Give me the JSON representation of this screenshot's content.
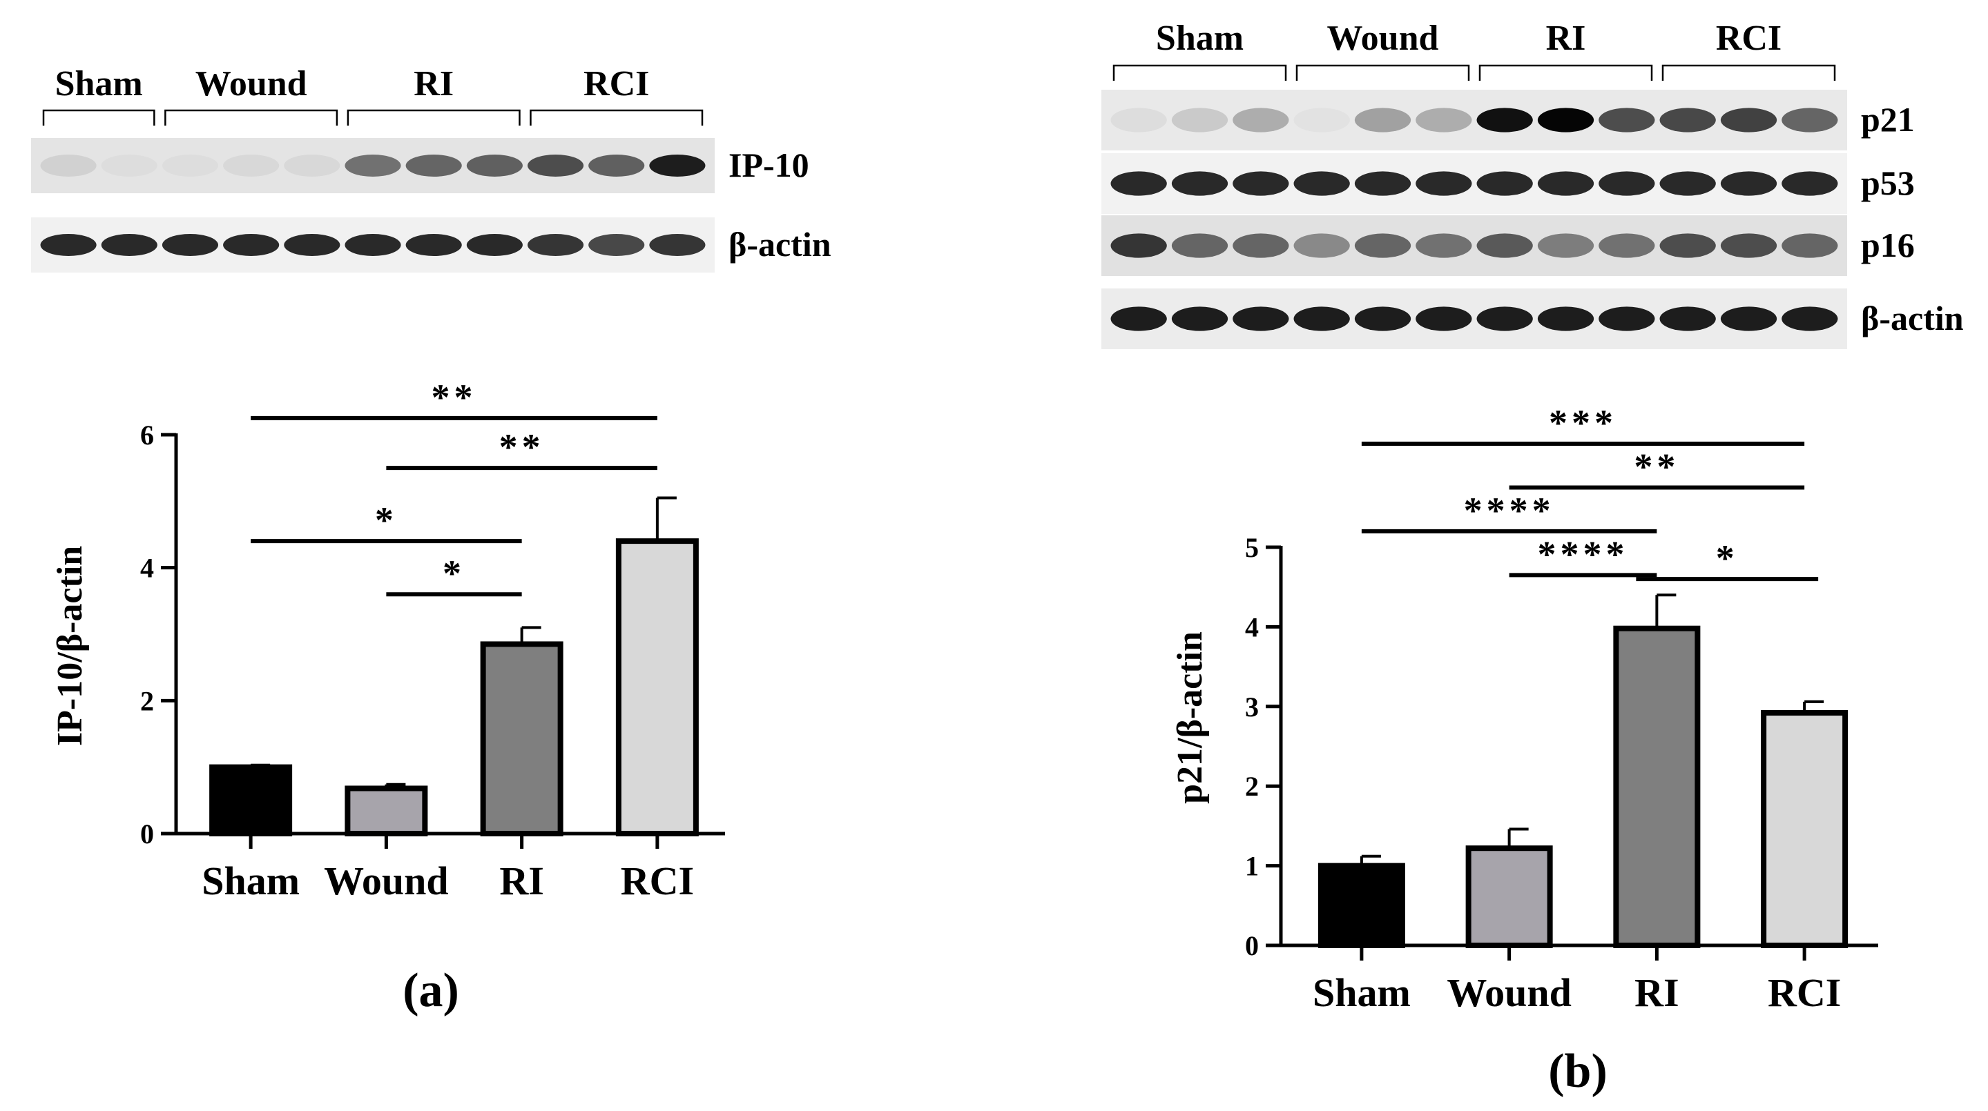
{
  "panels": [
    {
      "panel_label": "(a)",
      "blot": {
        "group_labels": [
          "Sham",
          "Wound",
          "RI",
          "RCI"
        ],
        "lanes_per_group": [
          2,
          3,
          3,
          3
        ],
        "rows": [
          {
            "label": "IP-10",
            "lane_intensity": [
              0.15,
              0.1,
              0.1,
              0.12,
              0.12,
              0.55,
              0.6,
              0.62,
              0.7,
              0.62,
              0.9
            ],
            "background": "#e4e4e4"
          },
          {
            "label": "β-actin",
            "lane_intensity": [
              0.85,
              0.85,
              0.85,
              0.85,
              0.85,
              0.85,
              0.85,
              0.85,
              0.8,
              0.72,
              0.8
            ],
            "background": "#f1f1f1"
          }
        ]
      },
      "chart_data": {
        "type": "bar",
        "categories": [
          "Sham",
          "Wound",
          "RI",
          "RCI"
        ],
        "values": [
          1.0,
          0.68,
          2.85,
          4.4
        ],
        "errors": [
          0.03,
          0.06,
          0.25,
          0.65
        ],
        "colors": [
          "#000000",
          "#a7a4ab",
          "#7f7f7f",
          "#d8d8d8"
        ],
        "ylabel": "IP-10/β-actin",
        "ylim": [
          0,
          6
        ],
        "yticks": [
          0,
          2,
          4,
          6
        ],
        "grid": false,
        "significance": [
          {
            "from": 0,
            "to": 3,
            "label": "**",
            "y": 6.25
          },
          {
            "from": 1,
            "to": 3,
            "label": "**",
            "y": 5.5
          },
          {
            "from": 0,
            "to": 2,
            "label": "*",
            "y": 4.4
          },
          {
            "from": 1,
            "to": 2,
            "label": "*",
            "y": 3.6
          }
        ]
      }
    },
    {
      "panel_label": "(b)",
      "blot": {
        "group_labels": [
          "Sham",
          "Wound",
          "RI",
          "RCI"
        ],
        "lanes_per_group": [
          3,
          3,
          3,
          3
        ],
        "rows": [
          {
            "label": "p21",
            "lane_intensity": [
              0.1,
              0.18,
              0.3,
              0.08,
              0.35,
              0.3,
              0.95,
              1.0,
              0.7,
              0.72,
              0.75,
              0.6
            ],
            "background": "#e9e9e9"
          },
          {
            "label": "p53",
            "lane_intensity": [
              0.85,
              0.85,
              0.85,
              0.85,
              0.85,
              0.85,
              0.85,
              0.85,
              0.85,
              0.85,
              0.85,
              0.85
            ],
            "background": "#f2f2f2"
          },
          {
            "label": "p16",
            "lane_intensity": [
              0.8,
              0.6,
              0.6,
              0.45,
              0.6,
              0.55,
              0.65,
              0.5,
              0.55,
              0.7,
              0.7,
              0.6
            ],
            "background": "#e1e1e1"
          },
          {
            "label": "β-actin",
            "lane_intensity": [
              0.9,
              0.9,
              0.9,
              0.9,
              0.9,
              0.9,
              0.9,
              0.9,
              0.9,
              0.9,
              0.9,
              0.9
            ],
            "background": "#ececec"
          }
        ]
      },
      "chart_data": {
        "type": "bar",
        "categories": [
          "Sham",
          "Wound",
          "RI",
          "RCI"
        ],
        "values": [
          1.0,
          1.22,
          3.98,
          2.92
        ],
        "errors": [
          0.12,
          0.24,
          0.42,
          0.14
        ],
        "colors": [
          "#000000",
          "#a7a4ab",
          "#7f7f7f",
          "#d8d8d8"
        ],
        "ylabel": "p21/β-actin",
        "ylim": [
          0,
          5
        ],
        "yticks": [
          0,
          1,
          2,
          3,
          4,
          5
        ],
        "grid": false,
        "significance": [
          {
            "from": 0,
            "to": 3,
            "label": "***",
            "y": 6.3
          },
          {
            "from": 1,
            "to": 3,
            "label": "**",
            "y": 5.75
          },
          {
            "from": 0,
            "to": 2,
            "label": "****",
            "y": 5.2
          },
          {
            "from": 1,
            "to": 2,
            "label": "****",
            "y": 4.65
          },
          {
            "from": 2,
            "to": 3,
            "label": "*",
            "y": 4.6
          }
        ]
      }
    }
  ]
}
